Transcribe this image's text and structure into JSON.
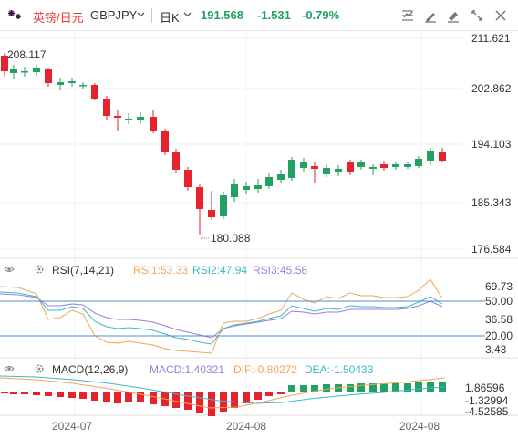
{
  "header": {
    "pair_cn": "英镑/日元",
    "pair_code": "GBPJPY",
    "period": "日K",
    "last_price": "191.568",
    "change": "-1.531",
    "change_pct": "-0.79%"
  },
  "main_chart": {
    "y_ticks": [
      "211.621",
      "202.862",
      "194.103",
      "185.343",
      "176.584"
    ],
    "high_marker": "208.117",
    "low_marker": "180.088"
  },
  "rsi": {
    "name": "RSI(7,14,21)",
    "rsi1": "RSI1:53.33",
    "rsi2": "RSI2:47.94",
    "rsi3": "RSI3:45.58",
    "y_ticks": [
      "69.73",
      "50.00",
      "36.58",
      "20.00",
      "3.43"
    ],
    "colors": {
      "rsi1": "#f2a35a",
      "rsi2": "#3fb8c9",
      "rsi3": "#9b7fd6"
    }
  },
  "macd": {
    "name": "MACD(12,26,9)",
    "macd": "MACD:1.40321",
    "dif": "DIF:-0.80272",
    "dea": "DEA:-1.50433",
    "y_ticks": [
      "1.86596",
      "-1.32994",
      "-4.52585"
    ],
    "colors": {
      "macd": "#9b7fd6",
      "dif": "#f2a35a",
      "dea": "#3fb8c9"
    }
  },
  "x_axis": {
    "labels": [
      "2024-07",
      "2024-08",
      "2024-08"
    ]
  },
  "colors": {
    "up": "#21a262",
    "down": "#e6232d",
    "accent_red": "#e63a3a",
    "grid": "#ececec"
  },
  "icons": [
    "uk-flag-icon",
    "chevron-down-icon",
    "indicator-settings-icon",
    "drawing-tools-icon",
    "eraser-icon",
    "fullscreen-icon",
    "close-icon",
    "visibility-icon",
    "gear-icon"
  ]
}
